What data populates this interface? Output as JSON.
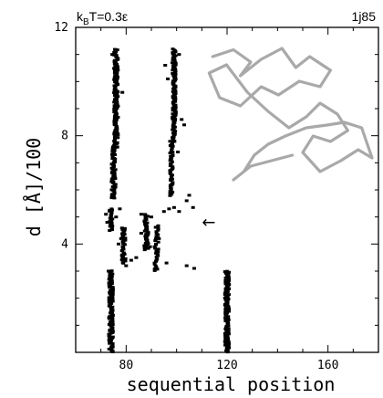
{
  "chart_data": {
    "type": "scatter",
    "title_left": "k_BT=0.3ε",
    "title_left_parts": {
      "k": "k",
      "sub": "B",
      "rest": "T=0.3ε"
    },
    "title_right": "1j85",
    "xlabel": "sequential position",
    "ylabel": "d [Å]/100",
    "xlim": [
      60,
      180
    ],
    "ylim": [
      0,
      12
    ],
    "x_ticks": [
      80,
      120,
      160
    ],
    "y_ticks": [
      4,
      8,
      12
    ],
    "x_tick_labels": [
      "80",
      "120",
      "160"
    ],
    "y_tick_labels": [
      "4",
      "8",
      "12"
    ],
    "grid": false,
    "marker_color": "#000000",
    "series": [
      {
        "bands": [
          {
            "x_center": 76,
            "x_spread": 1.6,
            "y_from": 7.6,
            "y_to": 11.2,
            "points": 140
          },
          {
            "x_center": 75,
            "x_spread": 1.6,
            "y_from": 5.7,
            "y_to": 7.6,
            "points": 60
          },
          {
            "x_center": 99,
            "x_spread": 1.4,
            "y_from": 7.8,
            "y_to": 11.2,
            "points": 130
          },
          {
            "x_center": 98,
            "x_spread": 1.2,
            "y_from": 5.8,
            "y_to": 7.8,
            "points": 50
          },
          {
            "x_center": 74,
            "x_spread": 1.2,
            "y_from": 4.5,
            "y_to": 5.3,
            "points": 25
          },
          {
            "x_center": 79,
            "x_spread": 1.5,
            "y_from": 3.3,
            "y_to": 4.6,
            "points": 40
          },
          {
            "x_center": 88,
            "x_spread": 1.6,
            "y_from": 3.8,
            "y_to": 5.1,
            "points": 45
          },
          {
            "x_center": 92,
            "x_spread": 1.5,
            "y_from": 3.0,
            "y_to": 4.7,
            "points": 35
          },
          {
            "x_center": 74,
            "x_spread": 1.6,
            "y_from": 0.0,
            "y_to": 3.0,
            "points": 120
          },
          {
            "x_center": 120,
            "x_spread": 1.6,
            "y_from": 0.0,
            "y_to": 3.0,
            "points": 120
          }
        ],
        "extra_points": [
          [
            72,
            5.1
          ],
          [
            73.5,
            5.25
          ],
          [
            76,
            5.0
          ],
          [
            77.5,
            5.3
          ],
          [
            86,
            5.1
          ],
          [
            90,
            5.0
          ],
          [
            95,
            5.2
          ],
          [
            97,
            5.3
          ],
          [
            99,
            5.35
          ],
          [
            101,
            5.2
          ],
          [
            104,
            5.6
          ],
          [
            105,
            5.8
          ],
          [
            106.5,
            5.35
          ],
          [
            103,
            8.4
          ],
          [
            102,
            8.6
          ],
          [
            96.5,
            10.1
          ],
          [
            95.5,
            10.6
          ],
          [
            93,
            4.2
          ],
          [
            84,
            3.5
          ],
          [
            82,
            3.4
          ],
          [
            78,
            4.2
          ],
          [
            96,
            3.3
          ],
          [
            104,
            3.2
          ],
          [
            107,
            3.1
          ],
          [
            80,
            3.2
          ],
          [
            72.5,
            4.8
          ],
          [
            73,
            3.0
          ],
          [
            100.5,
            7.4
          ],
          [
            78.5,
            9.6
          ],
          [
            74.5,
            11.0
          ],
          [
            101,
            11.0
          ],
          [
            77,
            4.0
          ],
          [
            86,
            4.4
          ],
          [
            89.5,
            3.9
          ]
        ]
      }
    ],
    "annotation": {
      "symbol": "←",
      "x": 110,
      "y": 4.8
    },
    "inset": {
      "description": "grey protein backbone trace",
      "stroke": "#a9a9a9",
      "path_points": [
        [
          0.08,
          0.08
        ],
        [
          0.2,
          0.03
        ],
        [
          0.3,
          0.12
        ],
        [
          0.24,
          0.22
        ],
        [
          0.36,
          0.1
        ],
        [
          0.48,
          0.02
        ],
        [
          0.56,
          0.16
        ],
        [
          0.64,
          0.08
        ],
        [
          0.76,
          0.18
        ],
        [
          0.7,
          0.3
        ],
        [
          0.58,
          0.26
        ],
        [
          0.46,
          0.36
        ],
        [
          0.36,
          0.3
        ],
        [
          0.24,
          0.44
        ],
        [
          0.12,
          0.38
        ],
        [
          0.06,
          0.2
        ],
        [
          0.16,
          0.14
        ],
        [
          0.28,
          0.34
        ],
        [
          0.4,
          0.48
        ],
        [
          0.52,
          0.6
        ],
        [
          0.62,
          0.52
        ],
        [
          0.7,
          0.42
        ],
        [
          0.8,
          0.5
        ],
        [
          0.86,
          0.62
        ],
        [
          0.76,
          0.7
        ],
        [
          0.66,
          0.66
        ],
        [
          0.6,
          0.78
        ],
        [
          0.7,
          0.92
        ],
        [
          0.82,
          0.84
        ],
        [
          0.92,
          0.76
        ],
        [
          1.0,
          0.82
        ],
        [
          0.94,
          0.6
        ],
        [
          0.84,
          0.56
        ],
        [
          0.74,
          0.58
        ],
        [
          0.62,
          0.6
        ],
        [
          0.5,
          0.66
        ],
        [
          0.4,
          0.72
        ],
        [
          0.32,
          0.8
        ],
        [
          0.26,
          0.92
        ],
        [
          0.2,
          0.98
        ],
        [
          0.3,
          0.88
        ],
        [
          0.42,
          0.84
        ],
        [
          0.54,
          0.8
        ]
      ]
    }
  }
}
